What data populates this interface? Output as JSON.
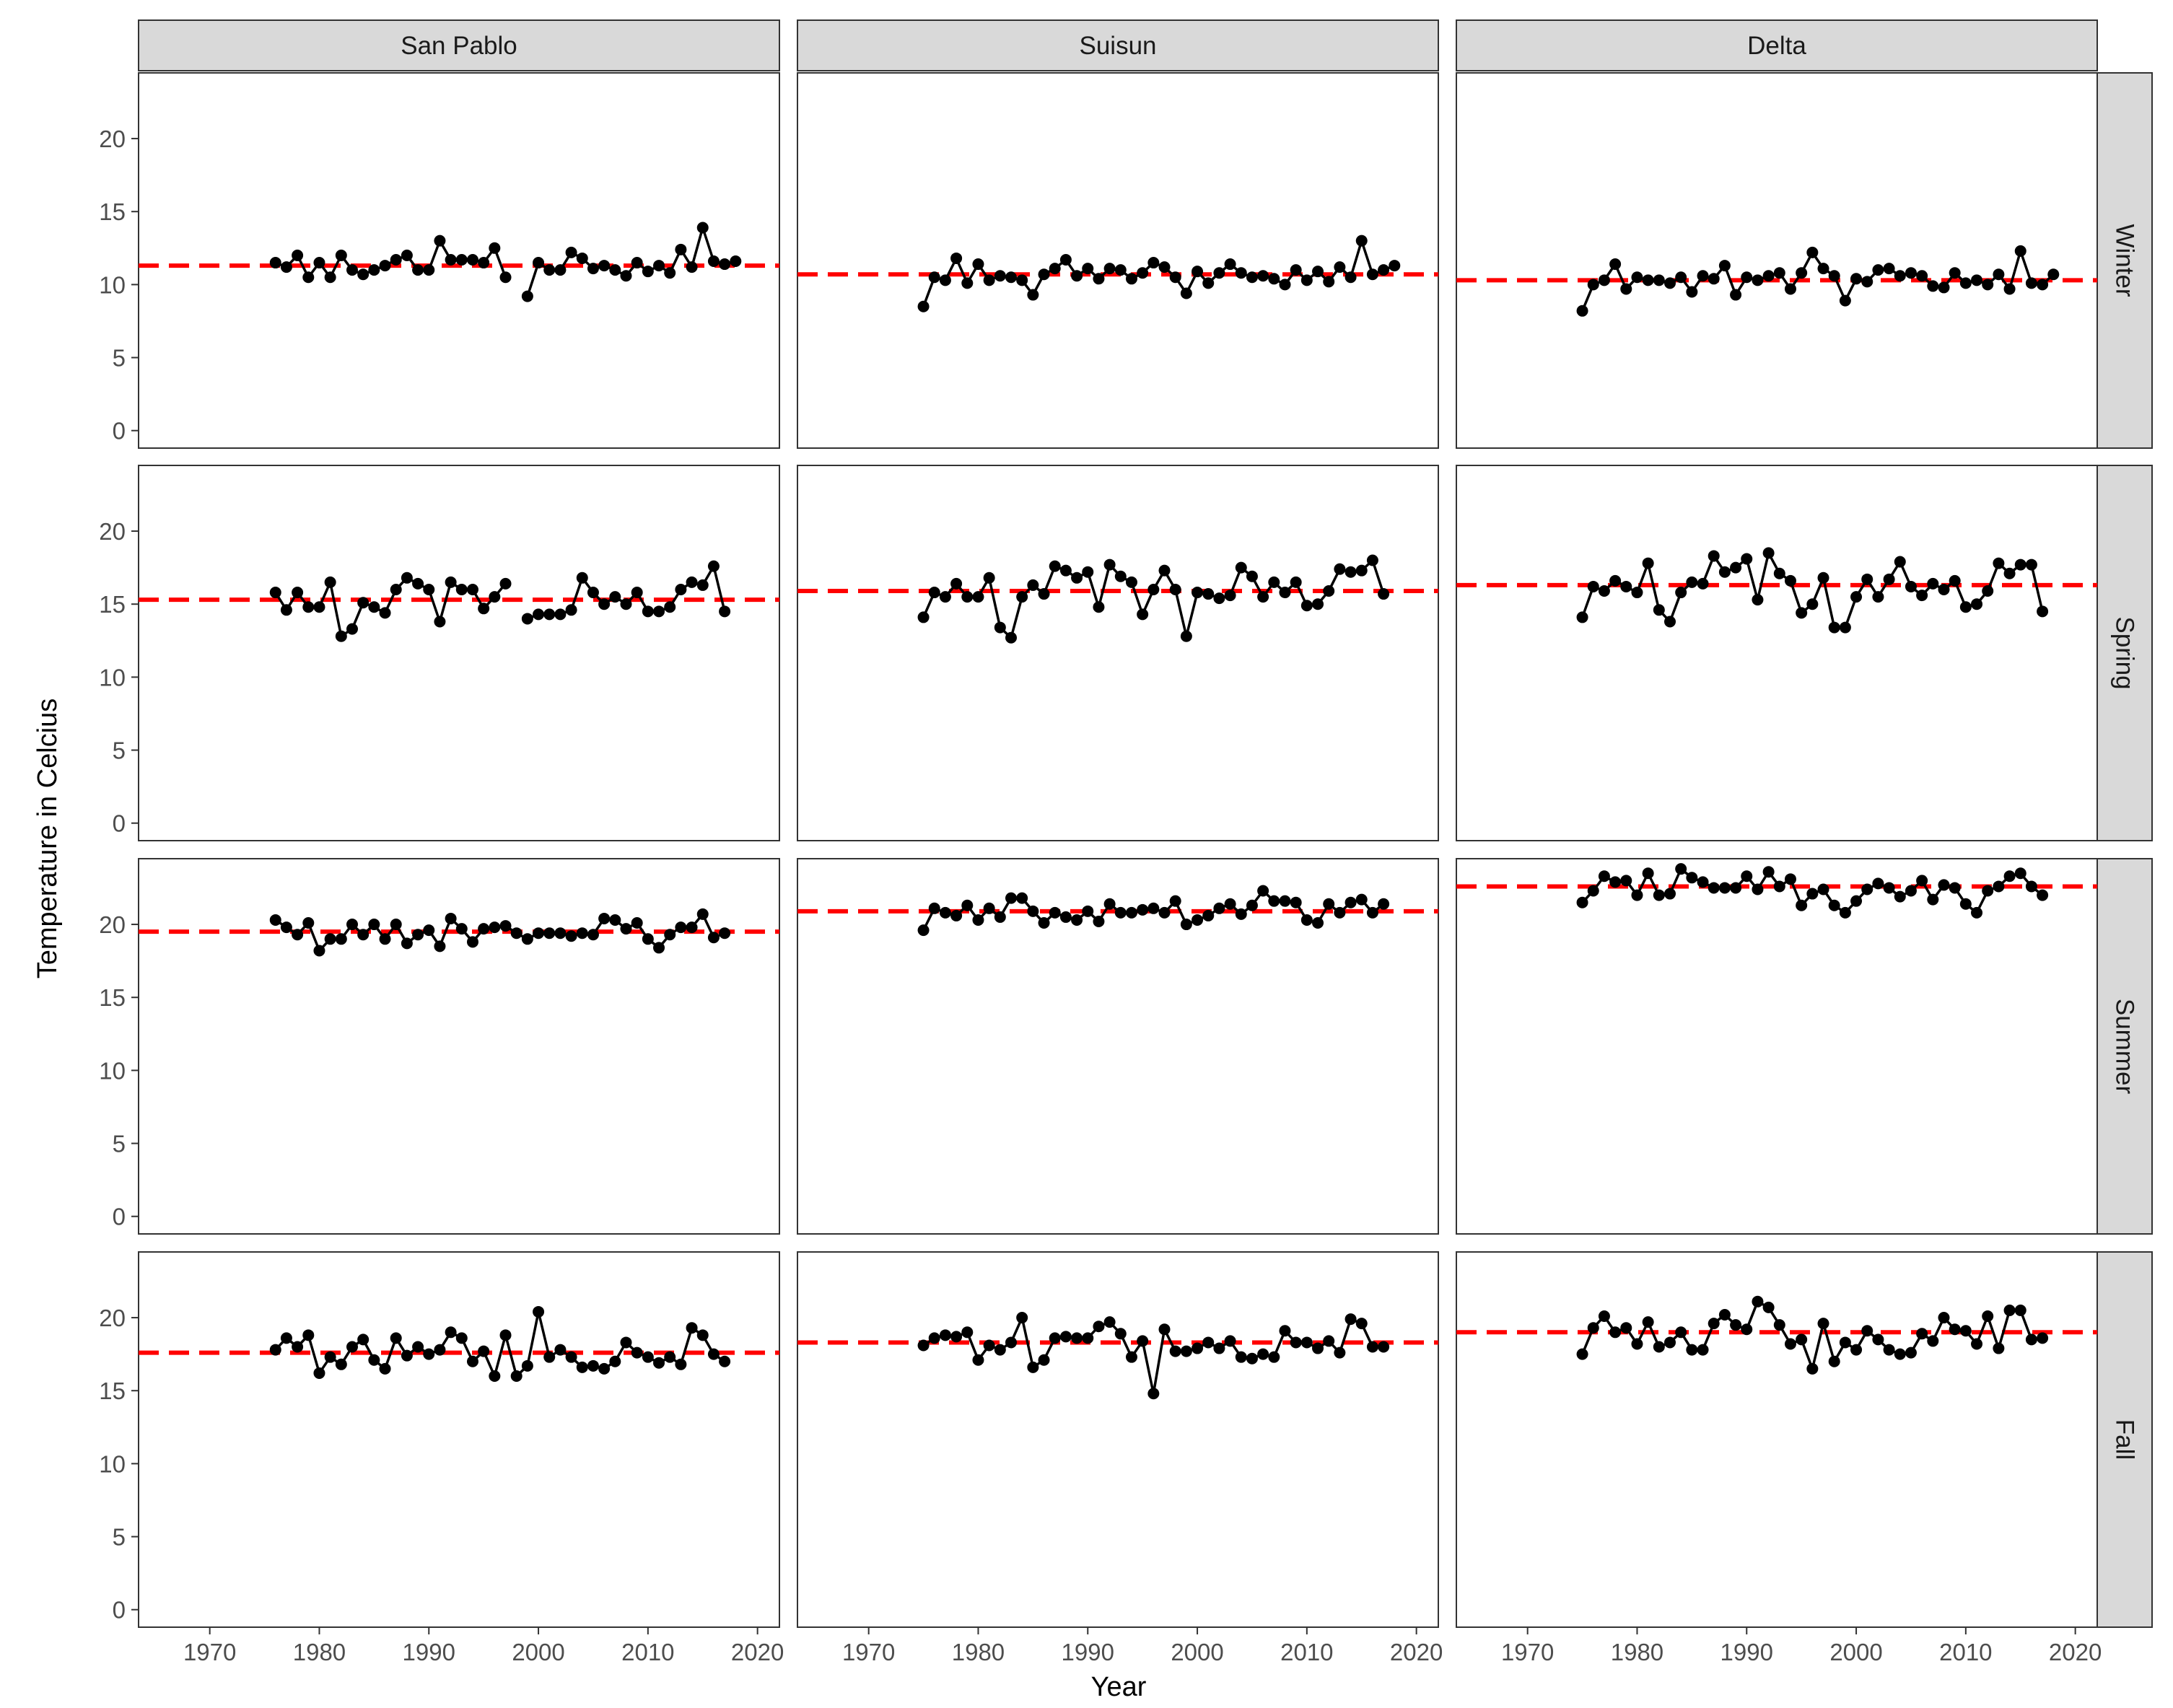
{
  "chart_data": {
    "type": "line",
    "facet_layout": "grid",
    "xlabel": "Year",
    "ylabel": "Temperature in Celcius",
    "xlim": [
      1963.5,
      2022
    ],
    "ylim": [
      -1.2,
      24.5
    ],
    "x_ticks": [
      1970,
      1980,
      1990,
      2000,
      2010,
      2020
    ],
    "y_ticks": [
      0,
      5,
      10,
      15,
      20
    ],
    "grid": false,
    "columns": [
      "San Pablo",
      "Suisun",
      "Delta"
    ],
    "rows": [
      "Winter",
      "Spring",
      "Summer",
      "Fall"
    ],
    "colors": {
      "series": "#000000",
      "mean_line": "#ff0000",
      "strip": "#d9d9d9",
      "panel_border": "#333333"
    },
    "panels": [
      {
        "column": "San Pablo",
        "row": "Winter",
        "mean": 11.3,
        "x_start": 1976,
        "values": [
          11.5,
          11.2,
          12.0,
          10.5,
          11.5,
          10.5,
          12.0,
          11.0,
          10.7,
          11.0,
          11.3,
          11.7,
          12.0,
          11.0,
          11.0,
          13.0,
          11.7,
          11.7,
          11.7,
          11.5,
          12.5,
          10.5,
          null,
          9.2,
          11.5,
          11.0,
          11.0,
          12.2,
          11.8,
          11.1,
          11.3,
          11.0,
          10.6,
          11.5,
          10.9,
          11.3,
          10.8,
          12.4,
          11.2,
          13.9,
          11.6,
          11.4,
          11.6
        ]
      },
      {
        "column": "Suisun",
        "row": "Winter",
        "mean": 10.7,
        "x_start": 1975,
        "values": [
          8.5,
          10.5,
          10.3,
          11.8,
          10.1,
          11.4,
          10.3,
          10.6,
          10.5,
          10.3,
          9.3,
          10.7,
          11.1,
          11.7,
          10.6,
          11.1,
          10.4,
          11.1,
          11.0,
          10.4,
          10.8,
          11.5,
          11.2,
          10.5,
          9.4,
          10.9,
          10.1,
          10.8,
          11.4,
          10.8,
          10.5,
          10.6,
          10.4,
          10.0,
          11.0,
          10.3,
          10.9,
          10.2,
          11.2,
          10.5,
          13.0,
          10.7,
          11.0,
          11.3
        ]
      },
      {
        "column": "Delta",
        "row": "Winter",
        "mean": 10.3,
        "x_start": 1975,
        "values": [
          8.2,
          10.0,
          10.3,
          11.4,
          9.7,
          10.5,
          10.3,
          10.3,
          10.1,
          10.5,
          9.5,
          10.6,
          10.4,
          11.3,
          9.3,
          10.5,
          10.3,
          10.6,
          10.8,
          9.7,
          10.8,
          12.2,
          11.1,
          10.6,
          8.9,
          10.4,
          10.2,
          11.0,
          11.1,
          10.6,
          10.8,
          10.6,
          9.9,
          9.8,
          10.8,
          10.1,
          10.3,
          10.0,
          10.7,
          9.7,
          12.3,
          10.1,
          10.0,
          10.7
        ]
      },
      {
        "column": "San Pablo",
        "row": "Spring",
        "mean": 15.3,
        "x_start": 1976,
        "values": [
          15.8,
          14.6,
          15.8,
          14.8,
          14.8,
          16.5,
          12.8,
          13.3,
          15.1,
          14.8,
          14.4,
          16.0,
          16.8,
          16.4,
          16.0,
          13.8,
          16.5,
          16.0,
          16.0,
          14.7,
          15.5,
          16.4,
          null,
          14.0,
          14.3,
          14.3,
          14.3,
          14.6,
          16.8,
          15.8,
          15.0,
          15.5,
          15.0,
          15.8,
          14.5,
          14.5,
          14.8,
          16.0,
          16.5,
          16.3,
          17.6,
          14.5
        ]
      },
      {
        "column": "Suisun",
        "row": "Spring",
        "mean": 15.9,
        "x_start": 1975,
        "values": [
          14.1,
          15.8,
          15.5,
          16.4,
          15.5,
          15.5,
          16.8,
          13.4,
          12.7,
          15.5,
          16.3,
          15.7,
          17.6,
          17.3,
          16.8,
          17.2,
          14.8,
          17.7,
          16.9,
          16.5,
          14.3,
          16.0,
          17.3,
          16.0,
          12.8,
          15.8,
          15.7,
          15.4,
          15.6,
          17.5,
          16.9,
          15.5,
          16.5,
          15.8,
          16.5,
          14.9,
          15.0,
          15.9,
          17.4,
          17.2,
          17.3,
          18.0,
          15.7
        ]
      },
      {
        "column": "Delta",
        "row": "Spring",
        "mean": 16.3,
        "x_start": 1975,
        "values": [
          14.1,
          16.2,
          15.9,
          16.6,
          16.2,
          15.8,
          17.8,
          14.6,
          13.8,
          15.8,
          16.5,
          16.4,
          18.3,
          17.2,
          17.5,
          18.1,
          15.3,
          18.5,
          17.1,
          16.6,
          14.4,
          15.0,
          16.8,
          13.4,
          13.4,
          15.5,
          16.7,
          15.5,
          16.7,
          17.9,
          16.2,
          15.6,
          16.4,
          16.0,
          16.6,
          14.8,
          15.0,
          15.9,
          17.8,
          17.1,
          17.7,
          17.7,
          14.5
        ]
      },
      {
        "column": "San Pablo",
        "row": "Summer",
        "mean": 19.5,
        "x_start": 1976,
        "values": [
          20.3,
          19.8,
          19.3,
          20.1,
          18.2,
          19.0,
          19.0,
          20.0,
          19.3,
          20.0,
          19.0,
          20.0,
          18.7,
          19.3,
          19.6,
          18.5,
          20.4,
          19.7,
          18.8,
          19.7,
          19.8,
          19.9,
          19.4,
          19.0,
          19.4,
          19.4,
          19.4,
          19.2,
          19.4,
          19.3,
          20.4,
          20.3,
          19.7,
          20.1,
          19.0,
          18.4,
          19.3,
          19.8,
          19.8,
          20.7,
          19.1,
          19.4
        ]
      },
      {
        "column": "Suisun",
        "row": "Summer",
        "mean": 20.9,
        "x_start": 1975,
        "values": [
          19.6,
          21.1,
          20.8,
          20.6,
          21.3,
          20.3,
          21.1,
          20.5,
          21.8,
          21.8,
          20.9,
          20.1,
          20.8,
          20.5,
          20.3,
          20.9,
          20.2,
          21.4,
          20.8,
          20.8,
          21.0,
          21.1,
          20.8,
          21.6,
          20.0,
          20.3,
          20.6,
          21.1,
          21.4,
          20.7,
          21.3,
          22.3,
          21.6,
          21.6,
          21.5,
          20.3,
          20.1,
          21.4,
          20.8,
          21.5,
          21.7,
          20.8,
          21.4
        ]
      },
      {
        "column": "Delta",
        "row": "Summer",
        "mean": 22.6,
        "x_start": 1975,
        "values": [
          21.5,
          22.3,
          23.3,
          22.9,
          23.0,
          22.0,
          23.5,
          22.0,
          22.1,
          23.8,
          23.2,
          22.9,
          22.5,
          22.5,
          22.5,
          23.3,
          22.4,
          23.6,
          22.6,
          23.1,
          21.3,
          22.1,
          22.4,
          21.3,
          20.8,
          21.6,
          22.4,
          22.8,
          22.5,
          21.9,
          22.3,
          23.0,
          21.7,
          22.7,
          22.5,
          21.4,
          20.8,
          22.3,
          22.6,
          23.3,
          23.5,
          22.6,
          22.0
        ]
      },
      {
        "column": "San Pablo",
        "row": "Fall",
        "mean": 17.6,
        "x_start": 1976,
        "values": [
          17.8,
          18.6,
          18.0,
          18.8,
          16.2,
          17.3,
          16.8,
          18.0,
          18.5,
          17.1,
          16.5,
          18.6,
          17.4,
          18.0,
          17.5,
          17.8,
          19.0,
          18.6,
          17.0,
          17.7,
          16.0,
          18.8,
          16.0,
          16.7,
          20.4,
          17.3,
          17.8,
          17.3,
          16.6,
          16.7,
          16.5,
          17.0,
          18.3,
          17.6,
          17.3,
          16.9,
          17.3,
          16.8,
          19.3,
          18.8,
          17.5,
          17.0
        ]
      },
      {
        "column": "Suisun",
        "row": "Fall",
        "mean": 18.3,
        "x_start": 1975,
        "values": [
          18.1,
          18.6,
          18.8,
          18.7,
          19.0,
          17.1,
          18.1,
          17.8,
          18.3,
          20.0,
          16.6,
          17.1,
          18.6,
          18.7,
          18.6,
          18.6,
          19.4,
          19.7,
          18.9,
          17.3,
          18.4,
          14.8,
          19.2,
          17.7,
          17.7,
          17.9,
          18.3,
          17.9,
          18.4,
          17.3,
          17.2,
          17.5,
          17.3,
          19.1,
          18.3,
          18.3,
          17.9,
          18.4,
          17.6,
          19.9,
          19.6,
          18.0,
          18.0
        ]
      },
      {
        "column": "Delta",
        "row": "Fall",
        "mean": 19.0,
        "x_start": 1975,
        "values": [
          17.5,
          19.3,
          20.1,
          19.0,
          19.3,
          18.2,
          19.7,
          18.0,
          18.3,
          19.0,
          17.8,
          17.8,
          19.6,
          20.2,
          19.5,
          19.2,
          21.1,
          20.7,
          19.5,
          18.2,
          18.5,
          16.5,
          19.6,
          17.0,
          18.3,
          17.8,
          19.1,
          18.5,
          17.8,
          17.5,
          17.6,
          18.9,
          18.4,
          20.0,
          19.2,
          19.1,
          18.2,
          20.1,
          17.9,
          20.5,
          20.5,
          18.5,
          18.6
        ]
      }
    ]
  }
}
